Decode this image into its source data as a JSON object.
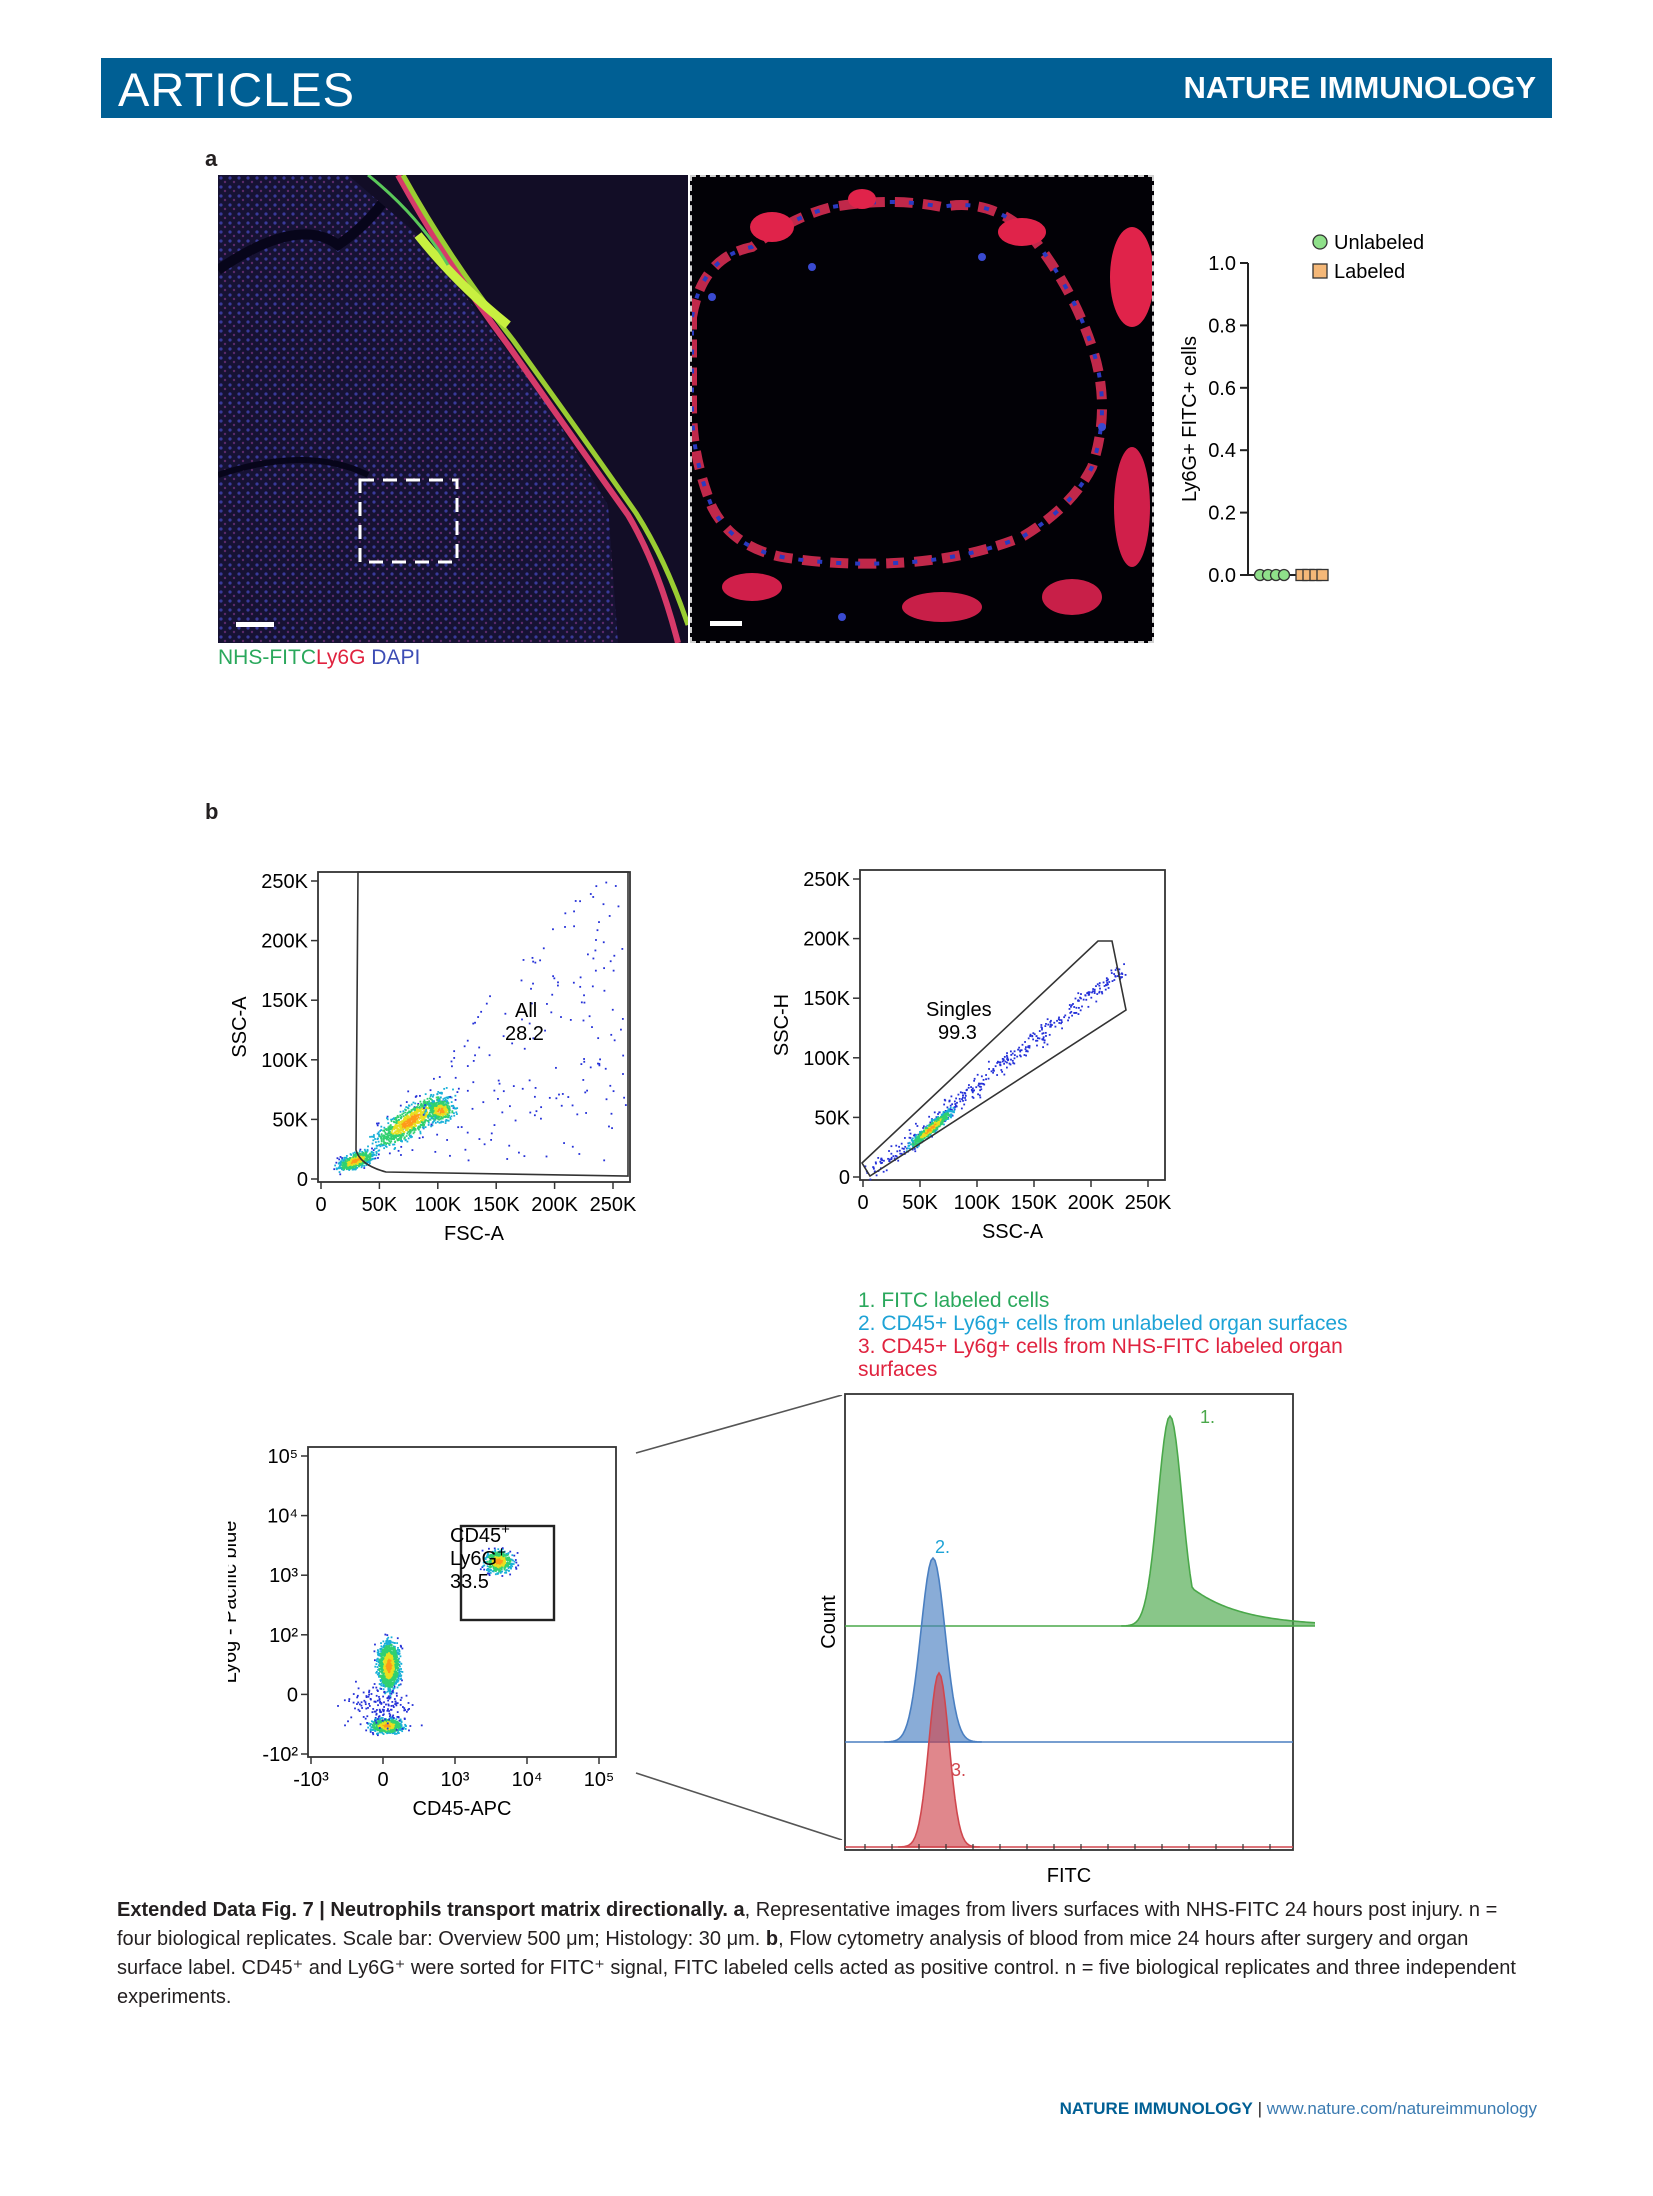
{
  "header": {
    "section": "ARTICLES",
    "journal": "NATURE IMMUNOLOGY"
  },
  "colors": {
    "header_bg": "#005f94",
    "green": "#2aa85c",
    "red": "#e0233f",
    "blue": "#3d4db5",
    "cyan": "#1ea3d6"
  },
  "panel_a": {
    "letter": "a",
    "stain_labels": {
      "nhs": "NHS-FITC",
      "ly6g": "Ly6G",
      "dapi": "DAPI"
    }
  },
  "panel_b": {
    "letter": "b"
  },
  "gate_labels": {
    "all_name": "All",
    "all_value": "28.2",
    "singles_name": "Singles",
    "singles_value": "99.3",
    "cd45": "CD45",
    "ly6g": "Ly6G",
    "cd45_value": "33.5",
    "plus": "+"
  },
  "histogram_legend": {
    "item1": "1. FITC labeled cells",
    "item2": "2. CD45+ Ly6g+ cells from unlabeled organ surfaces",
    "item3a": "3. CD45+ Ly6g+ cells from NHS-FITC labeled organ",
    "item3b": "surfaces",
    "peak1": "1.",
    "peak2": "2.",
    "peak3": "3."
  },
  "chart_data": [
    {
      "type": "scatter",
      "ylabel": "Ly6G+ FITC+ cells",
      "ylim": [
        0.0,
        1.0
      ],
      "yticks": [
        "0.0",
        "0.2",
        "0.4",
        "0.6",
        "0.8",
        "1.0"
      ],
      "legend_position": "top-right",
      "series": [
        {
          "name": "Unlabeled",
          "color": "#8fe08a",
          "marker": "circle",
          "values": [
            0.0,
            0.0,
            0.0,
            0.0
          ]
        },
        {
          "name": "Labeled",
          "color": "#f5b878",
          "marker": "square",
          "values": [
            0.0,
            0.0,
            0.0,
            0.0
          ]
        }
      ]
    },
    {
      "type": "scatter",
      "xlabel": "FSC-A",
      "ylabel": "SSC-A",
      "xticks": [
        "0",
        "50K",
        "100K",
        "150K",
        "200K",
        "250K"
      ],
      "yticks": [
        "0",
        "50K",
        "100K",
        "150K",
        "200K",
        "250K"
      ],
      "xlim": [
        0,
        262144
      ],
      "ylim": [
        0,
        262144
      ],
      "gate": {
        "name": "All",
        "value": 28.2
      }
    },
    {
      "type": "scatter",
      "xlabel": "SSC-A",
      "ylabel": "SSC-H",
      "xticks": [
        "0",
        "50K",
        "100K",
        "150K",
        "200K",
        "250K"
      ],
      "yticks": [
        "0",
        "50K",
        "100K",
        "150K",
        "200K",
        "250K"
      ],
      "xlim": [
        0,
        262144
      ],
      "ylim": [
        0,
        262144
      ],
      "gate": {
        "name": "Singles",
        "value": 99.3
      }
    },
    {
      "type": "scatter",
      "xlabel": "CD45-APC",
      "ylabel": "Ly6g - Pacific blue",
      "xscale": "biexponential",
      "xticks": [
        "-10³",
        "0",
        "10³",
        "10⁴",
        "10⁵"
      ],
      "yticks": [
        "-10²",
        "0",
        "10²",
        "10³",
        "10⁴",
        "10⁵"
      ],
      "gate": {
        "name": "CD45+ Ly6G+",
        "value": 33.5
      }
    },
    {
      "type": "area",
      "xlabel": "FITC",
      "ylabel": "Count",
      "series": [
        {
          "name": "1. FITC labeled cells",
          "color": "#4aa84a"
        },
        {
          "name": "2. CD45+ Ly6g+ cells from unlabeled organ surfaces",
          "color": "#4a7fc1"
        },
        {
          "name": "3. CD45+ Ly6g+ cells from NHS-FITC labeled organ surfaces",
          "color": "#d0474e"
        }
      ]
    }
  ],
  "caption": {
    "title": "Extended Data Fig. 7 | Neutrophils transport matrix directionally.",
    "a_letter": "a",
    "text_a": ", Representative images from livers surfaces with NHS-FITC 24 hours post injury. n = four biological replicates. Scale bar: Overview 500 μm; Histology: 30 μm. ",
    "b_letter": "b",
    "text_b": ", Flow cytometry analysis of blood from mice 24 hours after surgery and organ surface label. CD45⁺ and Ly6G⁺ were sorted for FITC⁺ signal, FITC labeled cells acted as positive control. n = five biological replicates and three independent experiments."
  },
  "footer": {
    "journal": "NATURE IMMUNOLOGY",
    "separator": " | ",
    "url": "www.nature.com/natureimmunology"
  }
}
